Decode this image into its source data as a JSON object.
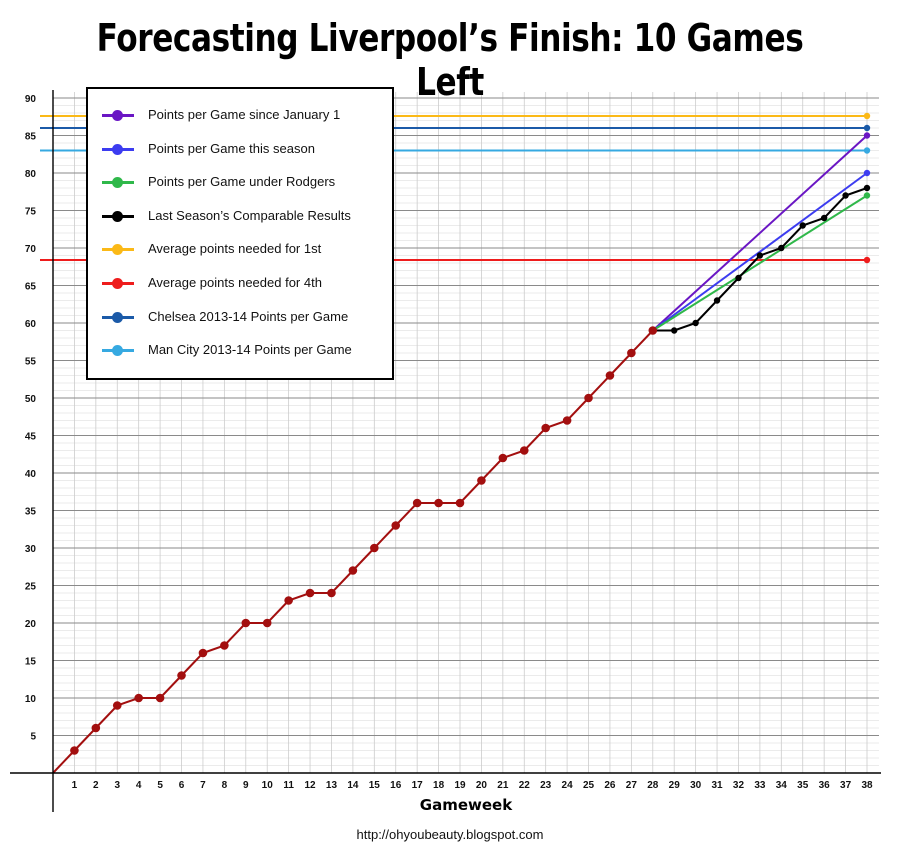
{
  "title": "Forecasting Liverpool’s Finish: 10 Games Left",
  "footer": "http://ohyoubeauty.blogspot.com",
  "chart_data": {
    "type": "line",
    "title": "Forecasting Liverpool’s Finish: 10 Games Left",
    "xlabel": "Gameweek",
    "ylabel": "",
    "xlim": [
      0,
      38
    ],
    "ylim": [
      0,
      90
    ],
    "x_ticks": [
      1,
      2,
      3,
      4,
      5,
      6,
      7,
      8,
      9,
      10,
      11,
      12,
      13,
      14,
      15,
      16,
      17,
      18,
      19,
      20,
      21,
      22,
      23,
      24,
      25,
      26,
      27,
      28,
      29,
      30,
      31,
      32,
      33,
      34,
      35,
      36,
      37,
      38
    ],
    "y_ticks": [
      5,
      10,
      15,
      20,
      25,
      30,
      35,
      40,
      45,
      50,
      55,
      60,
      65,
      70,
      75,
      80,
      85,
      90
    ],
    "grid": true,
    "legend_position": "top-left",
    "actual": {
      "color": "#a30f0f",
      "x": [
        1,
        2,
        3,
        4,
        5,
        6,
        7,
        8,
        9,
        10,
        11,
        12,
        13,
        14,
        15,
        16,
        17,
        18,
        19,
        20,
        21,
        22,
        23,
        24,
        25,
        26,
        27,
        28
      ],
      "values": [
        3,
        6,
        9,
        10,
        10,
        13,
        16,
        17,
        20,
        20,
        23,
        24,
        24,
        27,
        30,
        33,
        36,
        36,
        36,
        39,
        42,
        43,
        46,
        47,
        50,
        53,
        56,
        59
      ]
    },
    "series": [
      {
        "name": "Points per Game since January 1",
        "color": "#6a16c4",
        "kind": "line",
        "x": [
          28,
          38
        ],
        "values": [
          59,
          85
        ]
      },
      {
        "name": "Points per Game this season",
        "color": "#3c3cf0",
        "kind": "line",
        "x": [
          28,
          38
        ],
        "values": [
          59,
          80
        ]
      },
      {
        "name": "Points per Game under Rodgers",
        "color": "#2fb84a",
        "kind": "line",
        "x": [
          28,
          38
        ],
        "values": [
          59,
          77
        ]
      },
      {
        "name": "Last Season’s Comparable Results",
        "color": "#000000",
        "kind": "line",
        "x": [
          28,
          29,
          30,
          31,
          32,
          33,
          34,
          35,
          36,
          37,
          38
        ],
        "values": [
          59,
          59,
          60,
          63,
          66,
          69,
          70,
          73,
          74,
          77,
          78
        ]
      },
      {
        "name": "Average points needed for 1st",
        "color": "#fbb917",
        "kind": "hline",
        "value": 87.6
      },
      {
        "name": "Average points needed for 4th",
        "color": "#ee1c1c",
        "kind": "hline",
        "value": 68.4
      },
      {
        "name": "Chelsea 2013-14 Points per Game",
        "color": "#1b5aa8",
        "kind": "hline",
        "value": 86
      },
      {
        "name": "Man City 2013-14 Points per Game",
        "color": "#36a9e1",
        "kind": "hline",
        "value": 83
      }
    ]
  }
}
